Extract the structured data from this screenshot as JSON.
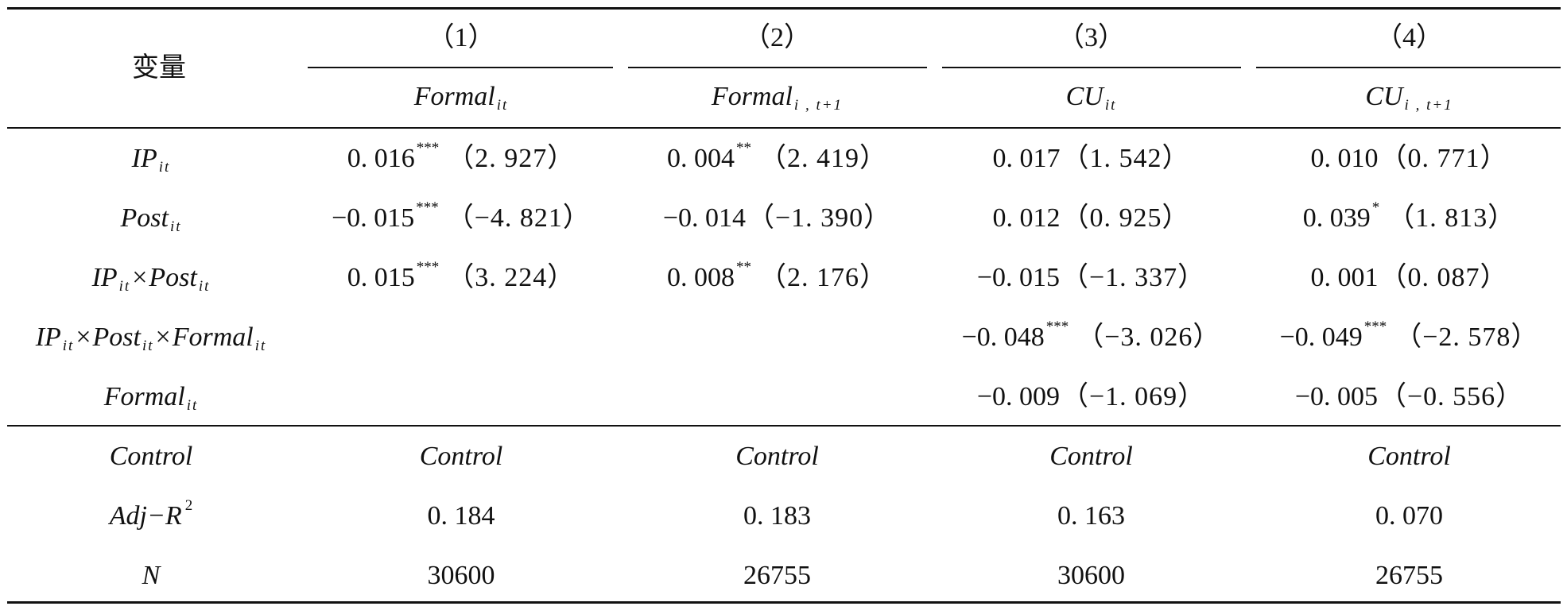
{
  "header": {
    "var_label": "变量",
    "columns": [
      {
        "num": "（1）",
        "dep_main": "Formal",
        "dep_sub": "it"
      },
      {
        "num": "（2）",
        "dep_main": "Formal",
        "dep_sub": "i , t+1"
      },
      {
        "num": "（3）",
        "dep_main": "CU",
        "dep_sub": "it"
      },
      {
        "num": "（4）",
        "dep_main": "CU",
        "dep_sub": "i , t+1"
      }
    ]
  },
  "var_parts": {
    "ip": "IP",
    "post": "Post",
    "formal": "Formal",
    "sub": "it",
    "times": "×"
  },
  "rows": [
    {
      "cells": [
        {
          "coef": "0. 016",
          "star": "***",
          "t": "（2. 927）"
        },
        {
          "coef": "0. 004",
          "star": "**",
          "t": "（2. 419）"
        },
        {
          "coef": "0. 017",
          "star": "",
          "t": "（1. 542）"
        },
        {
          "coef": "0. 010",
          "star": "",
          "t": "（0. 771）"
        }
      ]
    },
    {
      "cells": [
        {
          "coef": "−0. 015",
          "star": "***",
          "t": "（−4. 821）"
        },
        {
          "coef": "−0. 014",
          "star": "",
          "t": "（−1. 390）"
        },
        {
          "coef": "0. 012",
          "star": "",
          "t": "（0. 925）"
        },
        {
          "coef": "0. 039",
          "star": "*",
          "t": "（1. 813）"
        }
      ]
    },
    {
      "cells": [
        {
          "coef": "0. 015",
          "star": "***",
          "t": "（3. 224）"
        },
        {
          "coef": "0. 008",
          "star": "**",
          "t": "（2. 176）"
        },
        {
          "coef": "−0. 015",
          "star": "",
          "t": "（−1. 337）"
        },
        {
          "coef": "0. 001",
          "star": "",
          "t": "（0. 087）"
        }
      ]
    },
    {
      "cells": [
        {
          "coef": "",
          "star": "",
          "t": ""
        },
        {
          "coef": "",
          "star": "",
          "t": ""
        },
        {
          "coef": "−0. 048",
          "star": "***",
          "t": "（−3. 026）"
        },
        {
          "coef": "−0. 049",
          "star": "***",
          "t": "（−2. 578）"
        }
      ]
    },
    {
      "cells": [
        {
          "coef": "",
          "star": "",
          "t": ""
        },
        {
          "coef": "",
          "star": "",
          "t": ""
        },
        {
          "coef": "−0. 009",
          "star": "",
          "t": "（−1. 069）"
        },
        {
          "coef": "−0. 005",
          "star": "",
          "t": "（−0. 556）"
        }
      ]
    }
  ],
  "control": {
    "label": "Control",
    "values": [
      "Control",
      "Control",
      "Control",
      "Control"
    ]
  },
  "adj": {
    "label_main": "Adj−R",
    "label_sup": "2",
    "values": [
      "0. 184",
      "0. 183",
      "0. 163",
      "0. 070"
    ]
  },
  "n": {
    "label": "N",
    "values": [
      "30600",
      "26755",
      "30600",
      "26755"
    ]
  }
}
